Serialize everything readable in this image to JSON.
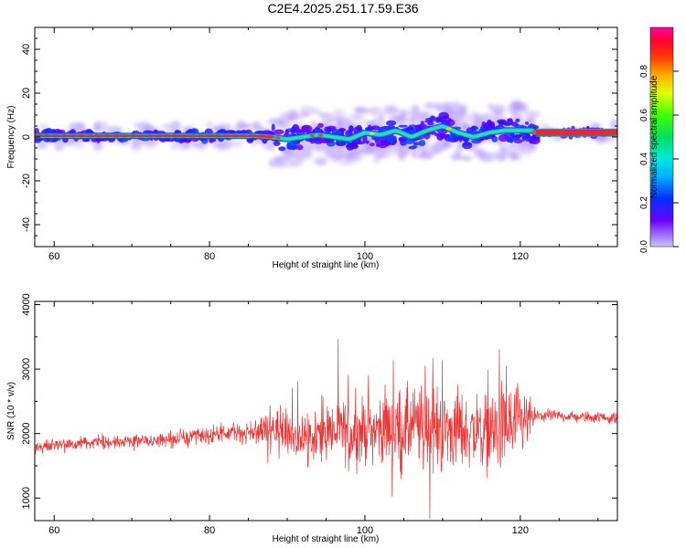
{
  "title": "C2E4.2025.251.17.59.E36",
  "chart_data": [
    {
      "type": "heatmap",
      "xlabel": "Height of straight line (km)",
      "ylabel": "Frequency (Hz)",
      "xlim": [
        57.5,
        132.5
      ],
      "ylim": [
        -50,
        50
      ],
      "xticks": [
        60,
        80,
        100,
        120
      ],
      "yticks": [
        -40,
        -20,
        0,
        20,
        40
      ],
      "colorbar": {
        "label": "Normalized spectral amplitude",
        "range": [
          0,
          1
        ],
        "ticks": [
          "0.0",
          "0.2",
          "0.4",
          "0.6",
          "0.8"
        ],
        "colormap": "rainbow"
      },
      "ridge": {
        "x": [
          58,
          62,
          66,
          70,
          74,
          78,
          82,
          86,
          88,
          90,
          92,
          94,
          96,
          98,
          100,
          102,
          104,
          106,
          108,
          110,
          112,
          114,
          116,
          118,
          120,
          121.5,
          122,
          132
        ],
        "y": [
          0.5,
          0.5,
          0.5,
          0.5,
          0.5,
          0.5,
          0.5,
          0.5,
          0,
          -1,
          0,
          1,
          0,
          -1,
          2,
          1,
          3,
          0,
          3,
          5,
          2,
          0,
          2,
          3,
          3,
          3,
          2,
          2
        ]
      }
    },
    {
      "type": "line",
      "xlabel": "Height of straight line (km)",
      "ylabel": "SNR (10 * v/v)",
      "xlim": [
        57.5,
        132.5
      ],
      "ylim": [
        650,
        4050
      ],
      "xticks": [
        60,
        80,
        100,
        120
      ],
      "yticks": [
        1000,
        2000,
        3000,
        4000
      ],
      "color": "#ee3333",
      "series": [
        {
          "x": [
            57.5,
            62,
            66,
            70,
            74,
            78,
            82,
            86,
            88,
            90,
            92,
            94,
            96,
            98,
            100,
            102,
            104,
            106,
            108,
            110,
            112,
            114,
            116,
            118,
            120,
            121,
            122,
            124,
            126,
            128,
            130,
            132.5
          ],
          "mean": [
            1790,
            1830,
            1860,
            1880,
            1900,
            1940,
            2000,
            2030,
            2060,
            2000,
            1950,
            2000,
            2030,
            1990,
            2050,
            2080,
            2050,
            2100,
            2080,
            2050,
            2050,
            2030,
            2030,
            2100,
            2080,
            2200,
            2270,
            2280,
            2270,
            2250,
            2260,
            2230
          ],
          "spread": [
            150,
            150,
            160,
            170,
            180,
            200,
            220,
            300,
            450,
            600,
            650,
            650,
            700,
            750,
            700,
            750,
            900,
            950,
            1000,
            950,
            850,
            800,
            900,
            1050,
            950,
            600,
            150,
            140,
            130,
            130,
            130,
            130
          ]
        }
      ]
    }
  ]
}
